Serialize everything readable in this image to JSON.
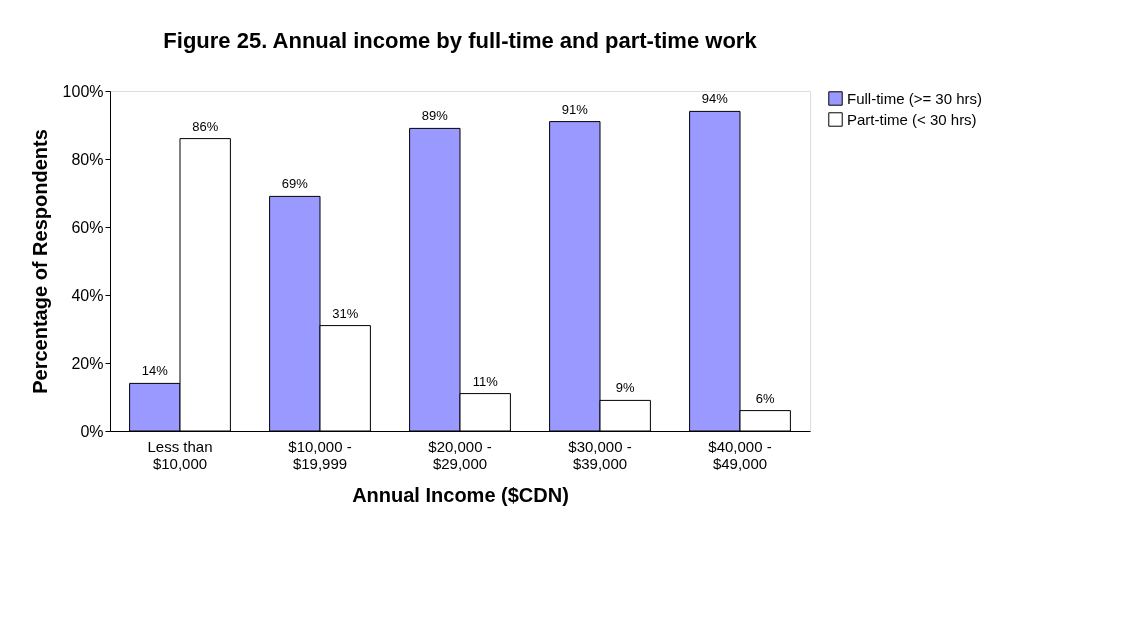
{
  "chart_data": {
    "type": "bar",
    "title": "Figure 25. Annual income by full-time and part-time work",
    "xlabel": "Annual Income ($CDN)",
    "ylabel": "Percentage of Respondents",
    "categories": [
      "Less than\n$10,000",
      "$10,000 -\n$19,999",
      "$20,000 -\n$29,000",
      "$30,000 -\n$39,000",
      "$40,000 -\n$49,000"
    ],
    "series": [
      {
        "name": "Full-time (>= 30 hrs)",
        "color": "#9999ff",
        "values": [
          14,
          69,
          89,
          91,
          94
        ],
        "value_labels": [
          "14%",
          "69%",
          "89%",
          "91%",
          "94%"
        ]
      },
      {
        "name": "Part-time (< 30 hrs)",
        "color": "#ffffff",
        "values": [
          86,
          31,
          11,
          9,
          6
        ],
        "value_labels": [
          "86%",
          "31%",
          "11%",
          "9%",
          "6%"
        ]
      }
    ],
    "ylim": [
      0,
      100
    ],
    "yticks": [
      {
        "value": 0,
        "label": "0%"
      },
      {
        "value": 20,
        "label": "20%"
      },
      {
        "value": 40,
        "label": "40%"
      },
      {
        "value": 60,
        "label": "60%"
      },
      {
        "value": 80,
        "label": "80%"
      },
      {
        "value": 100,
        "label": "100%"
      }
    ],
    "grid": false,
    "legend": "right"
  }
}
